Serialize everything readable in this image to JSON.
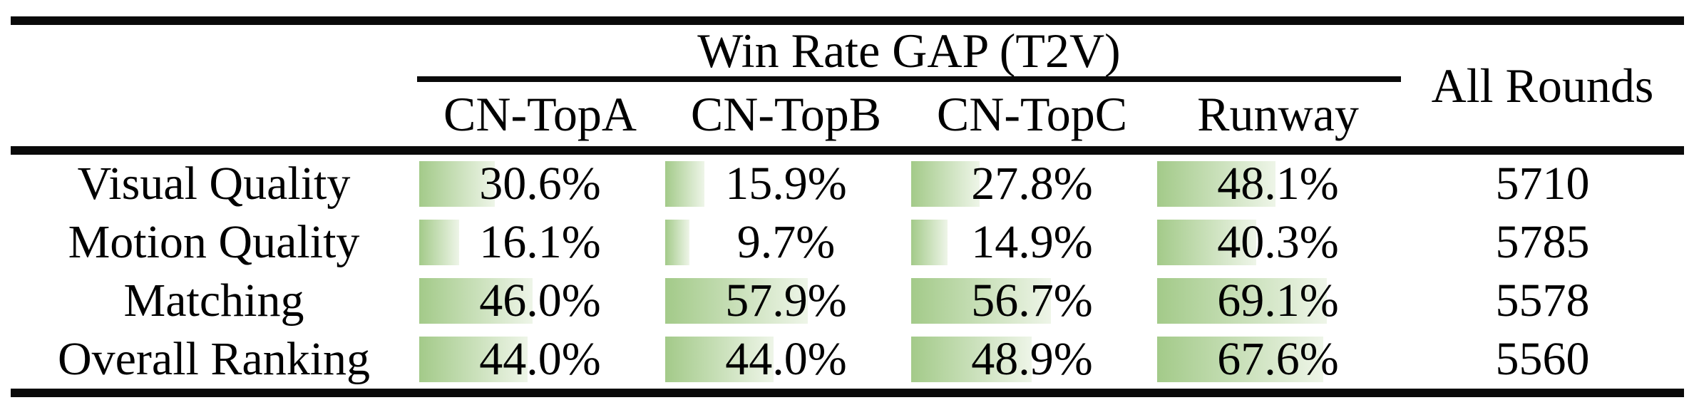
{
  "table": {
    "group_header": "Win Rate GAP (T2V)",
    "all_rounds_header": "All Rounds",
    "columns": [
      "CN-TopA",
      "CN-TopB",
      "CN-TopC",
      "Runway"
    ],
    "rows": [
      {
        "label": "Visual Quality",
        "values": [
          "30.6%",
          "15.9%",
          "27.8%",
          "48.1%"
        ],
        "pcts": [
          30.6,
          15.9,
          27.8,
          48.1
        ],
        "all_rounds": "5710"
      },
      {
        "label": "Motion Quality",
        "values": [
          "16.1%",
          "9.7%",
          "14.9%",
          "40.3%"
        ],
        "pcts": [
          16.1,
          9.7,
          14.9,
          40.3
        ],
        "all_rounds": "5785"
      },
      {
        "label": "Matching",
        "values": [
          "46.0%",
          "57.9%",
          "56.7%",
          "69.1%"
        ],
        "pcts": [
          46.0,
          57.9,
          56.7,
          69.1
        ],
        "all_rounds": "5578"
      },
      {
        "label": "Overall Ranking",
        "values": [
          "44.0%",
          "44.0%",
          "48.9%",
          "67.6%"
        ],
        "pcts": [
          44.0,
          44.0,
          48.9,
          67.6
        ],
        "all_rounds": "5560"
      }
    ],
    "colors": {
      "bar_gradient_start": "#a3ca89",
      "bar_gradient_end": "#eef5e8",
      "rule_color": "#0a0a0a",
      "text_color": "#000000"
    }
  }
}
